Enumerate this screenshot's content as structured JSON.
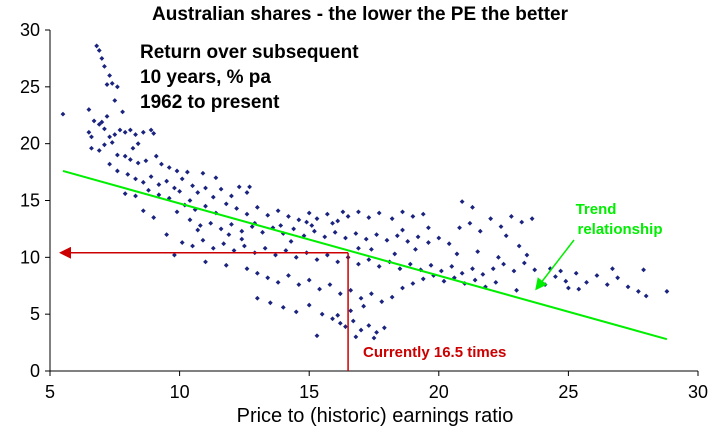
{
  "chart_data": {
    "type": "scatter",
    "title": "Australian shares - the lower the PE the better",
    "annotation_note": [
      "Return over subsequent",
      "10 years, % pa",
      "1962 to present"
    ],
    "xlabel": "Price to (historic) earnings ratio",
    "ylabel": "",
    "xlim": [
      5,
      30
    ],
    "ylim": [
      0,
      30
    ],
    "xticks": [
      5,
      10,
      15,
      20,
      25,
      30
    ],
    "yticks": [
      0,
      5,
      10,
      15,
      20,
      25,
      30
    ],
    "grid": false,
    "trend_line": {
      "label_lines": [
        "Trend",
        "relationship"
      ],
      "from": [
        5.5,
        17.6
      ],
      "to": [
        28.8,
        2.8
      ],
      "color": "#00ee00"
    },
    "current_marker": {
      "label": "Currently 16.5 times",
      "pe": 16.5,
      "implied_return": 10.4,
      "color": "#cc0000"
    },
    "series": [
      {
        "color": "#1a237e",
        "points": [
          [
            5.5,
            22.6
          ],
          [
            6.5,
            21.0
          ],
          [
            6.6,
            20.6
          ],
          [
            6.8,
            28.6
          ],
          [
            6.9,
            28.2
          ],
          [
            7.0,
            27.5
          ],
          [
            7.1,
            26.8
          ],
          [
            7.3,
            26.0
          ],
          [
            7.2,
            25.2
          ],
          [
            7.4,
            25.3
          ],
          [
            7.6,
            25.0
          ],
          [
            7.5,
            23.8
          ],
          [
            6.7,
            22.0
          ],
          [
            6.9,
            21.7
          ],
          [
            7.0,
            21.9
          ],
          [
            7.1,
            21.3
          ],
          [
            7.3,
            20.6
          ],
          [
            7.5,
            20.8
          ],
          [
            7.7,
            21.2
          ],
          [
            7.9,
            21.0
          ],
          [
            8.1,
            21.2
          ],
          [
            8.3,
            20.8
          ],
          [
            8.6,
            21.0
          ],
          [
            8.9,
            21.2
          ],
          [
            9.0,
            20.9
          ],
          [
            6.6,
            19.6
          ],
          [
            6.9,
            19.4
          ],
          [
            7.1,
            19.9
          ],
          [
            7.4,
            20.1
          ],
          [
            7.6,
            19.0
          ],
          [
            7.9,
            18.9
          ],
          [
            8.1,
            18.6
          ],
          [
            8.4,
            18.3
          ],
          [
            8.7,
            18.5
          ],
          [
            9.1,
            18.9
          ],
          [
            9.3,
            18.2
          ],
          [
            9.6,
            17.9
          ],
          [
            9.9,
            17.6
          ],
          [
            7.3,
            18.2
          ],
          [
            7.6,
            17.6
          ],
          [
            8.0,
            17.3
          ],
          [
            8.3,
            16.9
          ],
          [
            8.6,
            16.6
          ],
          [
            8.9,
            17.1
          ],
          [
            9.2,
            16.4
          ],
          [
            9.5,
            16.7
          ],
          [
            9.8,
            16.1
          ],
          [
            10.1,
            16.9
          ],
          [
            10.3,
            17.5
          ],
          [
            10.5,
            16.3
          ],
          [
            7.9,
            15.6
          ],
          [
            8.3,
            15.4
          ],
          [
            8.8,
            15.9
          ],
          [
            9.2,
            15.5
          ],
          [
            9.6,
            15.2
          ],
          [
            10.0,
            15.8
          ],
          [
            10.4,
            15.0
          ],
          [
            10.7,
            15.7
          ],
          [
            11.0,
            16.1
          ],
          [
            11.3,
            15.3
          ],
          [
            11.6,
            16.0
          ],
          [
            12.0,
            15.4
          ],
          [
            12.3,
            16.2
          ],
          [
            12.6,
            15.7
          ],
          [
            10.2,
            14.6
          ],
          [
            10.6,
            14.2
          ],
          [
            11.0,
            14.5
          ],
          [
            11.4,
            13.9
          ],
          [
            11.8,
            14.7
          ],
          [
            12.2,
            14.3
          ],
          [
            12.6,
            13.8
          ],
          [
            13.0,
            14.4
          ],
          [
            13.4,
            13.7
          ],
          [
            13.8,
            14.1
          ],
          [
            14.2,
            13.6
          ],
          [
            14.6,
            13.3
          ],
          [
            15.0,
            13.9
          ],
          [
            15.3,
            13.4
          ],
          [
            15.7,
            13.8
          ],
          [
            16.1,
            13.2
          ],
          [
            16.5,
            13.6
          ],
          [
            16.9,
            14.0
          ],
          [
            17.3,
            13.5
          ],
          [
            17.7,
            13.9
          ],
          [
            18.2,
            13.4
          ],
          [
            18.6,
            14.0
          ],
          [
            19.0,
            13.6
          ],
          [
            19.4,
            13.8
          ],
          [
            10.4,
            13.3
          ],
          [
            10.8,
            12.8
          ],
          [
            11.2,
            13.0
          ],
          [
            11.6,
            12.5
          ],
          [
            12.0,
            12.9
          ],
          [
            12.4,
            12.3
          ],
          [
            12.8,
            12.7
          ],
          [
            13.2,
            12.2
          ],
          [
            13.6,
            12.6
          ],
          [
            14.0,
            12.1
          ],
          [
            14.4,
            12.5
          ],
          [
            14.8,
            11.9
          ],
          [
            15.2,
            12.3
          ],
          [
            15.6,
            11.8
          ],
          [
            16.0,
            12.2
          ],
          [
            16.4,
            11.7
          ],
          [
            16.8,
            12.1
          ],
          [
            17.2,
            11.6
          ],
          [
            17.6,
            12.0
          ],
          [
            18.0,
            11.5
          ],
          [
            18.4,
            11.9
          ],
          [
            18.8,
            11.4
          ],
          [
            19.2,
            11.8
          ],
          [
            19.6,
            11.3
          ],
          [
            20.0,
            11.7
          ],
          [
            20.4,
            11.2
          ],
          [
            20.8,
            12.6
          ],
          [
            21.2,
            13.0
          ],
          [
            21.6,
            12.3
          ],
          [
            22.0,
            13.4
          ],
          [
            22.4,
            12.7
          ],
          [
            22.8,
            13.6
          ],
          [
            23.2,
            13.1
          ],
          [
            23.6,
            13.4
          ],
          [
            20.9,
            14.9
          ],
          [
            21.3,
            14.4
          ],
          [
            10.1,
            11.3
          ],
          [
            10.5,
            11.0
          ],
          [
            10.9,
            11.5
          ],
          [
            11.3,
            10.8
          ],
          [
            11.7,
            11.2
          ],
          [
            12.1,
            10.6
          ],
          [
            12.5,
            11.0
          ],
          [
            12.9,
            10.4
          ],
          [
            13.3,
            10.8
          ],
          [
            13.7,
            10.2
          ],
          [
            14.1,
            10.6
          ],
          [
            14.5,
            10.0
          ],
          [
            14.9,
            10.4
          ],
          [
            15.3,
            9.8
          ],
          [
            15.7,
            10.2
          ],
          [
            16.1,
            9.6
          ],
          [
            16.5,
            10.0
          ],
          [
            16.9,
            9.4
          ],
          [
            17.3,
            9.8
          ],
          [
            17.7,
            9.2
          ],
          [
            18.1,
            9.6
          ],
          [
            18.5,
            9.0
          ],
          [
            18.9,
            9.4
          ],
          [
            19.3,
            8.9
          ],
          [
            19.7,
            9.3
          ],
          [
            20.1,
            8.8
          ],
          [
            20.5,
            9.2
          ],
          [
            20.9,
            8.6
          ],
          [
            21.3,
            9.0
          ],
          [
            21.7,
            8.5
          ],
          [
            22.1,
            9.0
          ],
          [
            22.5,
            9.4
          ],
          [
            22.9,
            8.8
          ],
          [
            23.3,
            9.5
          ],
          [
            23.7,
            8.9
          ],
          [
            9.8,
            10.2
          ],
          [
            11.0,
            9.6
          ],
          [
            11.8,
            9.3
          ],
          [
            12.6,
            9.0
          ],
          [
            13.0,
            8.6
          ],
          [
            13.4,
            8.2
          ],
          [
            13.8,
            7.8
          ],
          [
            14.2,
            8.4
          ],
          [
            14.6,
            7.6
          ],
          [
            15.0,
            8.0
          ],
          [
            15.4,
            7.2
          ],
          [
            15.8,
            7.6
          ],
          [
            16.2,
            6.8
          ],
          [
            16.6,
            7.1
          ],
          [
            17.0,
            6.4
          ],
          [
            17.4,
            6.8
          ],
          [
            17.8,
            6.1
          ],
          [
            18.2,
            6.5
          ],
          [
            18.6,
            7.3
          ],
          [
            19.0,
            7.7
          ],
          [
            19.4,
            8.1
          ],
          [
            19.8,
            8.4
          ],
          [
            20.2,
            7.9
          ],
          [
            20.6,
            8.2
          ],
          [
            21.0,
            7.7
          ],
          [
            21.4,
            8.0
          ],
          [
            21.8,
            7.4
          ],
          [
            22.2,
            7.8
          ],
          [
            13.0,
            6.4
          ],
          [
            13.5,
            6.0
          ],
          [
            14.0,
            5.6
          ],
          [
            14.5,
            5.2
          ],
          [
            15.0,
            5.8
          ],
          [
            15.5,
            5.0
          ],
          [
            15.9,
            4.6
          ],
          [
            16.2,
            4.2
          ],
          [
            16.4,
            3.9
          ],
          [
            16.7,
            4.4
          ],
          [
            17.0,
            3.6
          ],
          [
            17.3,
            4.0
          ],
          [
            17.6,
            3.4
          ],
          [
            17.9,
            3.8
          ],
          [
            16.1,
            4.9
          ],
          [
            16.6,
            5.3
          ],
          [
            17.1,
            5.7
          ],
          [
            15.3,
            3.1
          ],
          [
            16.8,
            3.0
          ],
          [
            17.5,
            2.9
          ],
          [
            24.1,
            7.6
          ],
          [
            24.5,
            8.3
          ],
          [
            24.9,
            7.9
          ],
          [
            25.3,
            8.6
          ],
          [
            25.7,
            7.8
          ],
          [
            26.1,
            8.4
          ],
          [
            26.5,
            7.6
          ],
          [
            26.9,
            8.2
          ],
          [
            27.3,
            7.4
          ],
          [
            27.7,
            7.0
          ],
          [
            28.0,
            6.6
          ],
          [
            28.8,
            7.0
          ],
          [
            25.0,
            7.3
          ],
          [
            26.7,
            9.0
          ],
          [
            24.3,
            9.0
          ],
          [
            23.0,
            7.1
          ],
          [
            22.6,
            11.9
          ],
          [
            23.1,
            11.0
          ],
          [
            12.9,
            13.0
          ],
          [
            13.9,
            12.8
          ],
          [
            14.9,
            13.1
          ],
          [
            15.9,
            13.0
          ],
          [
            16.3,
            14.0
          ],
          [
            15.1,
            12.8
          ],
          [
            14.3,
            11.4
          ],
          [
            12.4,
            11.6
          ],
          [
            11.9,
            12.0
          ],
          [
            10.7,
            12.4
          ],
          [
            9.5,
            12.0
          ],
          [
            9.0,
            13.5
          ],
          [
            9.9,
            14.0
          ],
          [
            8.6,
            14.1
          ],
          [
            10.9,
            17.4
          ],
          [
            11.4,
            17.0
          ],
          [
            12.7,
            16.2
          ],
          [
            7.2,
            22.4
          ],
          [
            6.5,
            23.0
          ],
          [
            7.8,
            22.8
          ],
          [
            8.4,
            20.0
          ],
          [
            8.2,
            19.6
          ],
          [
            17.4,
            10.7
          ],
          [
            18.3,
            10.3
          ],
          [
            19.1,
            10.7
          ],
          [
            16.9,
            10.8
          ],
          [
            20.7,
            10.3
          ],
          [
            21.5,
            10.5
          ],
          [
            22.3,
            10.0
          ],
          [
            23.4,
            10.2
          ],
          [
            24.7,
            8.8
          ],
          [
            25.4,
            7.2
          ],
          [
            27.9,
            8.9
          ],
          [
            19.6,
            12.6
          ],
          [
            18.6,
            12.4
          ]
        ]
      }
    ]
  }
}
